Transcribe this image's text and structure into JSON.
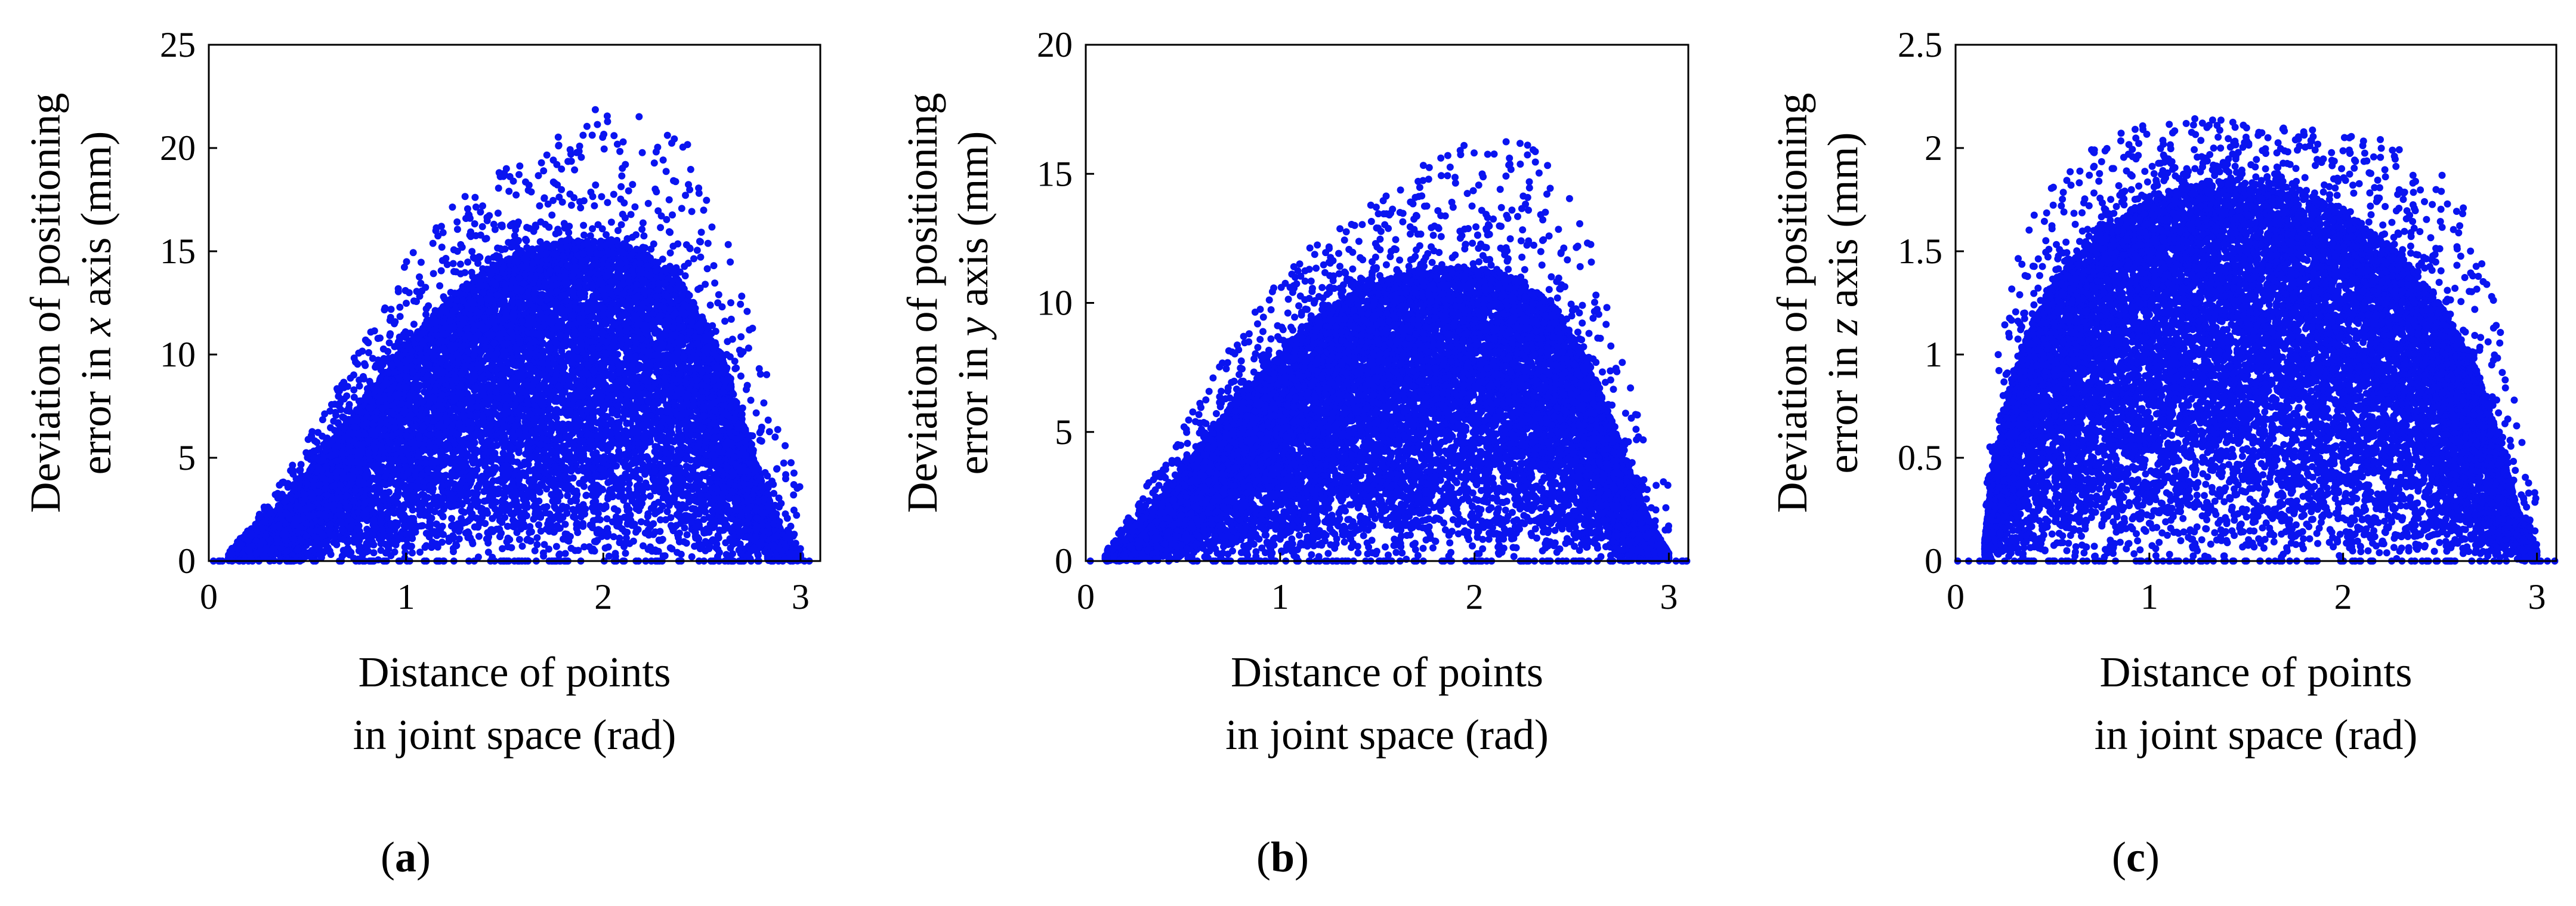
{
  "colors": {
    "points": "#0a14f0",
    "axis": "#000000",
    "background": "#ffffff"
  },
  "chart_data": [
    {
      "panel": "a",
      "type": "scatter",
      "caption": {
        "open": "(",
        "letter": "a",
        "close": ")"
      },
      "xlabel_lines": [
        "Distance of points",
        "in joint space (rad)"
      ],
      "ylabel_lines": [
        [
          "Deviation of positioning"
        ],
        [
          "error in ",
          "x",
          " axis (mm)"
        ]
      ],
      "xlim": [
        0,
        3.1
      ],
      "ylim": [
        0,
        25
      ],
      "xticks": [
        0,
        1,
        2,
        3
      ],
      "yticks": [
        0,
        5,
        10,
        15,
        20,
        25
      ],
      "envelope": {
        "x": [
          0.1,
          0.2,
          0.4,
          0.6,
          0.8,
          1.0,
          1.2,
          1.4,
          1.6,
          1.8,
          2.0,
          2.2,
          2.4,
          2.6,
          2.7,
          2.8,
          2.9,
          3.0
        ],
        "dense_upper": [
          0.2,
          1.0,
          3.0,
          5.5,
          8.0,
          10.5,
          12.5,
          14.0,
          15.0,
          15.5,
          15.5,
          15.0,
          13.5,
          10.0,
          7.0,
          4.0,
          1.5,
          0.3
        ],
        "sparse_upper": [
          0.5,
          1.5,
          4.5,
          7.5,
          11.0,
          14.5,
          17.0,
          18.5,
          19.5,
          21.0,
          22.5,
          21.5,
          21.0,
          17.0,
          13.0,
          10.0,
          7.0,
          4.0
        ]
      },
      "num_points_dense": 14000,
      "num_points_sparse": 700
    },
    {
      "panel": "b",
      "type": "scatter",
      "caption": {
        "open": "(",
        "letter": "b",
        "close": ")"
      },
      "xlabel_lines": [
        "Distance of points",
        "in joint space (rad)"
      ],
      "ylabel_lines": [
        [
          "Deviation of positioning"
        ],
        [
          "error in ",
          "y",
          " axis (mm)"
        ]
      ],
      "xlim": [
        0,
        3.1
      ],
      "ylim": [
        0,
        20
      ],
      "xticks": [
        0,
        1,
        2,
        3
      ],
      "yticks": [
        0,
        5,
        10,
        15,
        20
      ],
      "envelope": {
        "x": [
          0.1,
          0.2,
          0.4,
          0.6,
          0.8,
          1.0,
          1.2,
          1.4,
          1.6,
          1.8,
          2.0,
          2.2,
          2.4,
          2.6,
          2.7,
          2.8,
          2.9,
          3.0
        ],
        "dense_upper": [
          0.2,
          0.8,
          2.5,
          4.5,
          6.5,
          8.0,
          9.5,
          10.5,
          11.0,
          11.3,
          11.3,
          11.0,
          10.0,
          7.5,
          5.5,
          3.5,
          1.5,
          0.3
        ],
        "sparse_upper": [
          0.5,
          1.5,
          4.0,
          6.5,
          9.0,
          11.0,
          12.5,
          13.5,
          14.5,
          16.5,
          16.0,
          16.5,
          15.5,
          12.5,
          10.0,
          7.0,
          4.0,
          3.0
        ]
      },
      "num_points_dense": 14000,
      "num_points_sparse": 700
    },
    {
      "panel": "c",
      "type": "scatter",
      "caption": {
        "open": "(",
        "letter": "c",
        "close": ")"
      },
      "xlabel_lines": [
        "Distance of points",
        "in joint space (rad)"
      ],
      "ylabel_lines": [
        [
          "Deviation of positioning"
        ],
        [
          "error in ",
          "z",
          " axis (mm)"
        ]
      ],
      "xlim": [
        0,
        3.1
      ],
      "ylim": [
        0,
        2.5
      ],
      "xticks": [
        0,
        1,
        2,
        3
      ],
      "yticks": [
        0,
        0.5,
        1,
        1.5,
        2,
        2.5
      ],
      "envelope": {
        "x": [
          0.15,
          0.2,
          0.3,
          0.4,
          0.5,
          0.7,
          0.9,
          1.1,
          1.3,
          1.5,
          1.7,
          1.9,
          2.1,
          2.3,
          2.5,
          2.7,
          2.8,
          2.9,
          3.0
        ],
        "dense_upper": [
          0.1,
          0.5,
          0.9,
          1.15,
          1.35,
          1.55,
          1.7,
          1.78,
          1.82,
          1.82,
          1.78,
          1.72,
          1.62,
          1.48,
          1.25,
          0.9,
          0.6,
          0.25,
          0.05
        ],
        "sparse_upper": [
          0.3,
          0.9,
          1.4,
          1.7,
          1.85,
          2.0,
          2.1,
          2.13,
          2.15,
          2.12,
          2.1,
          2.1,
          2.05,
          2.05,
          1.9,
          1.6,
          1.2,
          0.7,
          0.3
        ]
      },
      "num_points_dense": 14000,
      "num_points_sparse": 700
    }
  ]
}
